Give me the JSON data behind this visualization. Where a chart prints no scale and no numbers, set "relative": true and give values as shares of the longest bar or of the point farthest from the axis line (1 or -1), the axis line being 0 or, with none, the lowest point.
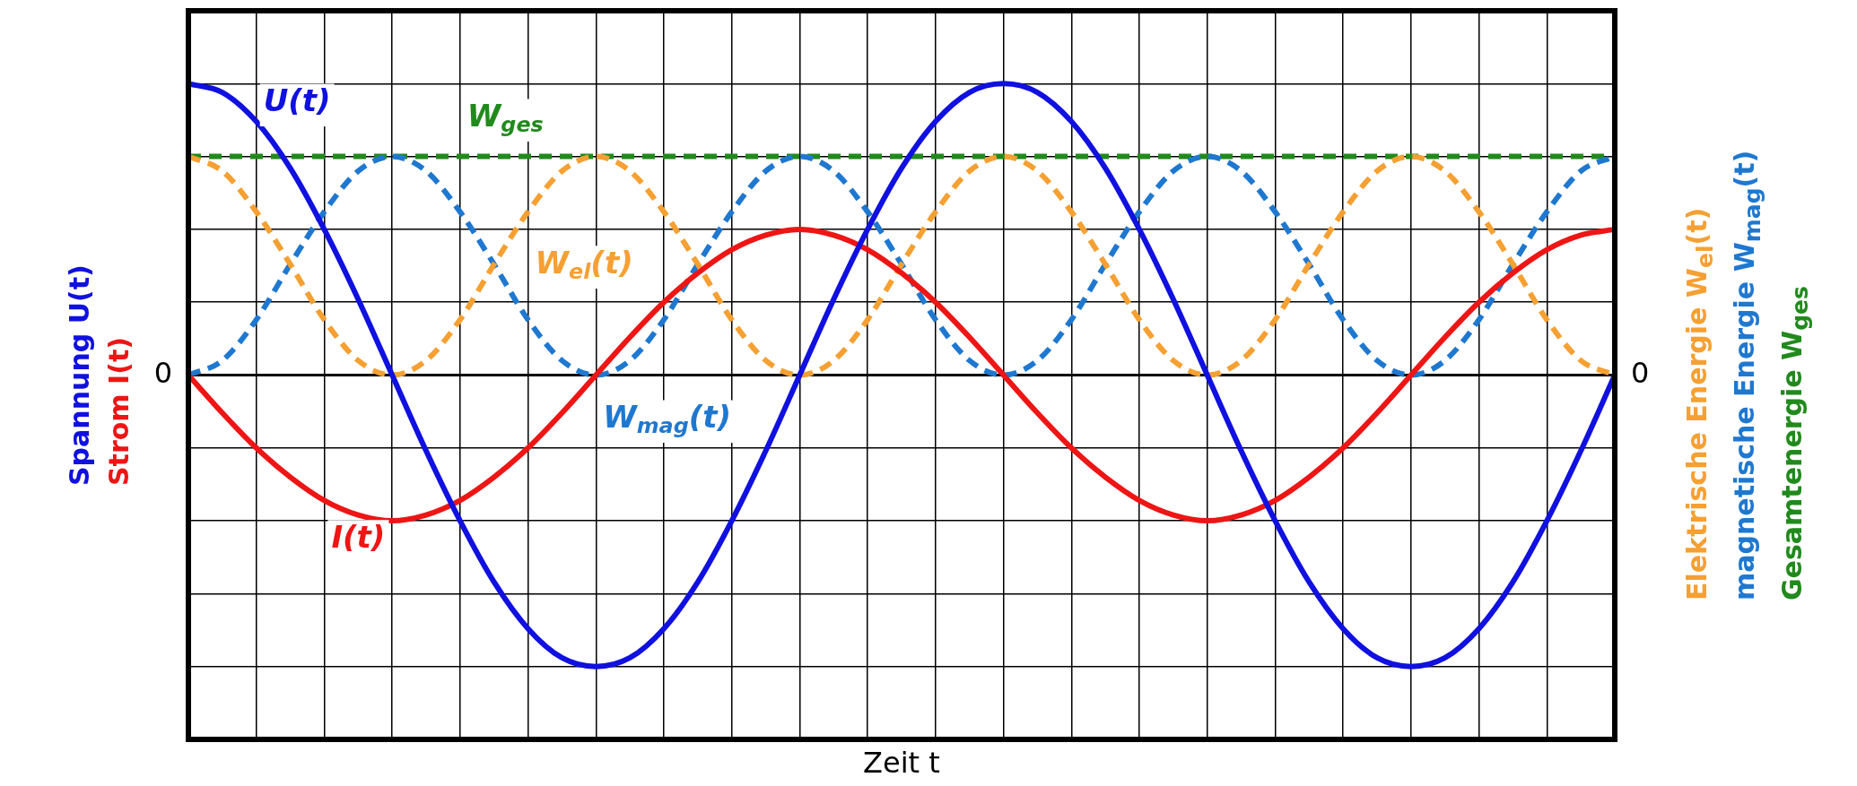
{
  "chart_data": {
    "type": "line",
    "relative": true,
    "xlabel": "Zeit t",
    "ylabel": "Spannung U(t)\nStrom I(t)",
    "y2label": "Elektrische Energie W$_{el}$(t)\nmagnetische Energie W$_{mag}$(t)\nGesamtenergie W$_{ges}$",
    "categories": [
      null,
      null,
      null,
      null,
      null,
      null,
      null,
      null,
      null,
      null,
      null,
      null,
      null,
      null,
      null,
      null,
      null,
      null,
      null,
      null,
      null,
      null,
      null,
      null,
      null,
      null,
      null,
      null,
      null,
      null,
      null,
      null,
      null,
      null,
      null,
      null,
      null,
      null,
      null,
      null,
      null,
      null,
      null
    ],
    "grid": true,
    "legend": false,
    "marker": "none",
    "ref_lines": [
      {
        "axis": "y",
        "value": 0,
        "label": "0",
        "color": "#000000"
      }
    ],
    "series": [
      {
        "name": "U(t)",
        "color": "#1010e0",
        "line_style": "solid",
        "values": [
          1,
          0.97,
          0.87,
          0.71,
          0.5,
          0.26,
          0,
          -0.26,
          -0.5,
          -0.71,
          -0.87,
          -0.97,
          -1,
          -0.97,
          -0.87,
          -0.71,
          -0.5,
          -0.26,
          0,
          0.26,
          0.5,
          0.71,
          0.87,
          0.97,
          1,
          0.97,
          0.87,
          0.71,
          0.5,
          0.26,
          0,
          -0.26,
          -0.5,
          -0.71,
          -0.87,
          -0.97,
          -1,
          -0.97,
          -0.87,
          -0.71,
          -0.5,
          -0.26,
          0
        ]
      },
      {
        "name": "I(t)",
        "color": "#ee1515",
        "line_style": "solid",
        "values": [
          0,
          -0.13,
          -0.25,
          -0.35,
          -0.43,
          -0.48,
          -0.5,
          -0.48,
          -0.43,
          -0.35,
          -0.25,
          -0.13,
          0,
          0.13,
          0.25,
          0.35,
          0.43,
          0.48,
          0.5,
          0.48,
          0.43,
          0.35,
          0.25,
          0.13,
          0,
          -0.13,
          -0.25,
          -0.35,
          -0.43,
          -0.48,
          -0.5,
          -0.48,
          -0.43,
          -0.35,
          -0.25,
          -0.13,
          0,
          0.13,
          0.25,
          0.35,
          0.43,
          0.48,
          0.5
        ]
      },
      {
        "name": "W$_{el}$(t)",
        "color": "#f5a032",
        "line_style": "dashed",
        "values": [
          0.75,
          0.7,
          0.56,
          0.38,
          0.19,
          0.05,
          0,
          0.05,
          0.19,
          0.38,
          0.56,
          0.7,
          0.75,
          0.7,
          0.56,
          0.38,
          0.19,
          0.05,
          0,
          0.05,
          0.19,
          0.38,
          0.56,
          0.7,
          0.75,
          0.7,
          0.56,
          0.38,
          0.19,
          0.05,
          0,
          0.05,
          0.19,
          0.38,
          0.56,
          0.7,
          0.75,
          0.7,
          0.56,
          0.38,
          0.19,
          0.05,
          0
        ]
      },
      {
        "name": "W$_{mag}$(t)",
        "color": "#1f78d0",
        "line_style": "dashed",
        "values": [
          0,
          0.05,
          0.19,
          0.38,
          0.56,
          0.7,
          0.75,
          0.7,
          0.56,
          0.38,
          0.19,
          0.05,
          0,
          0.05,
          0.19,
          0.38,
          0.56,
          0.7,
          0.75,
          0.7,
          0.56,
          0.38,
          0.19,
          0.05,
          0,
          0.05,
          0.19,
          0.38,
          0.56,
          0.7,
          0.75,
          0.7,
          0.56,
          0.38,
          0.19,
          0.05,
          0,
          0.05,
          0.19,
          0.38,
          0.56,
          0.7,
          0.75
        ]
      },
      {
        "name": "W$_{ges}$",
        "color": "#218a1c",
        "line_style": "dashed",
        "values": [
          0.75,
          0.75,
          0.75,
          0.75,
          0.75,
          0.75,
          0.75,
          0.75,
          0.75,
          0.75,
          0.75,
          0.75,
          0.75,
          0.75,
          0.75,
          0.75,
          0.75,
          0.75,
          0.75,
          0.75,
          0.75,
          0.75,
          0.75,
          0.75,
          0.75,
          0.75,
          0.75,
          0.75,
          0.75,
          0.75,
          0.75,
          0.75,
          0.75,
          0.75,
          0.75,
          0.75,
          0.75,
          0.75,
          0.75,
          0.75,
          0.75,
          0.75,
          0.75
        ]
      }
    ]
  }
}
